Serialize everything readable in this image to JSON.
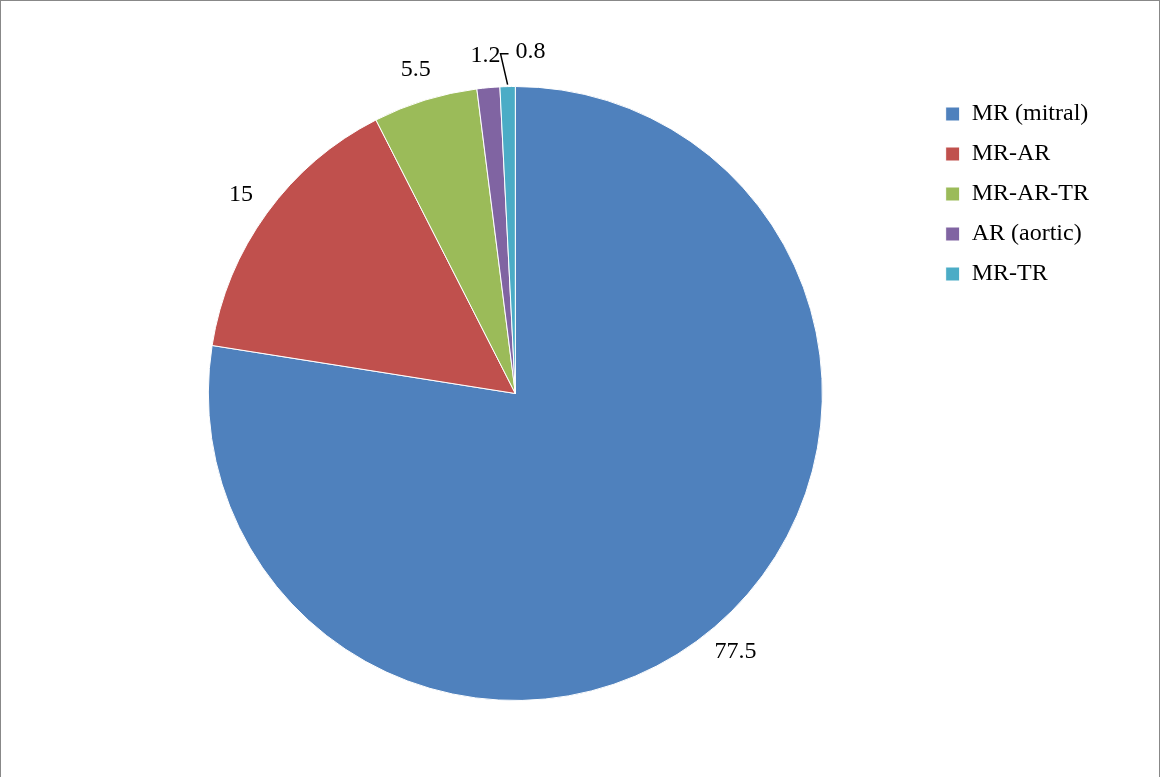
{
  "chart_data": {
    "type": "pie",
    "categories": [
      "MR (mitral)",
      "MR-AR",
      "MR-AR-TR",
      "AR (aortic)",
      "MR-TR"
    ],
    "values": [
      77.5,
      15,
      5.5,
      1.2,
      0.8
    ],
    "colors": [
      "#4f81bd",
      "#c0504d",
      "#9bbb59",
      "#8064a2",
      "#4bacc6"
    ],
    "data_labels": true,
    "legend": "right"
  }
}
